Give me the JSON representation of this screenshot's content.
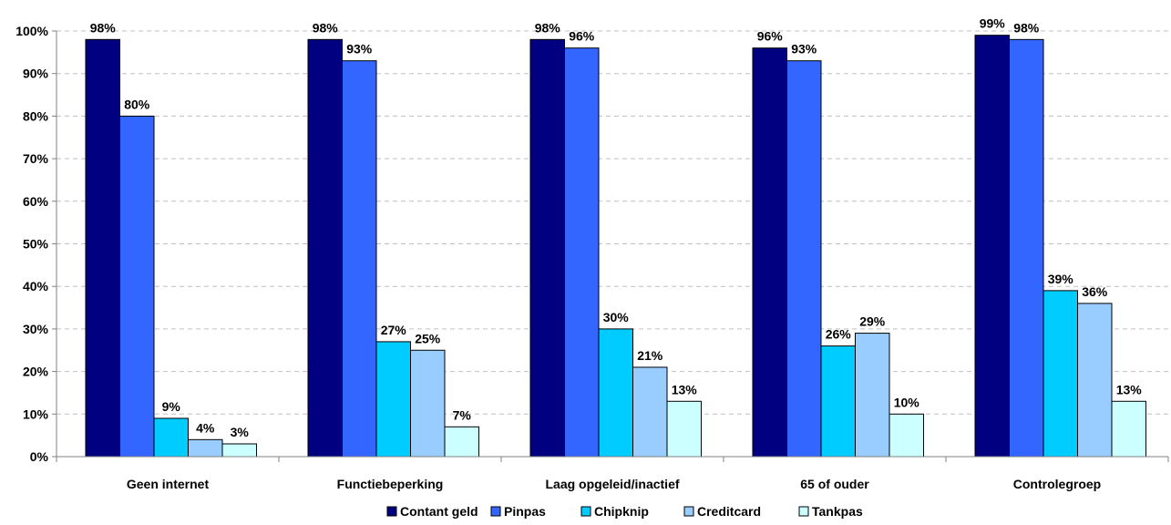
{
  "chart_data": {
    "type": "bar",
    "title": "",
    "xlabel": "",
    "ylabel": "",
    "ylim": [
      0,
      100
    ],
    "y_ticks": [
      "0%",
      "10%",
      "20%",
      "30%",
      "40%",
      "50%",
      "60%",
      "70%",
      "80%",
      "90%",
      "100%"
    ],
    "y_tick_values": [
      0,
      10,
      20,
      30,
      40,
      50,
      60,
      70,
      80,
      90,
      100
    ],
    "grid": true,
    "legend_position": "bottom",
    "categories": [
      "Geen internet",
      "Functiebeperking",
      "Laag opgeleid/inactief",
      "65 of ouder",
      "Controlegroep"
    ],
    "series": [
      {
        "name": "Contant geld",
        "color": "#000080",
        "values": [
          98,
          98,
          98,
          96,
          99
        ],
        "labels": [
          "98%",
          "98%",
          "98%",
          "96%",
          "99%"
        ]
      },
      {
        "name": "Pinpas",
        "color": "#3366FF",
        "values": [
          80,
          93,
          96,
          93,
          98
        ],
        "labels": [
          "80%",
          "93%",
          "96%",
          "93%",
          "98%"
        ]
      },
      {
        "name": "Chipknip",
        "color": "#00CCFF",
        "values": [
          9,
          27,
          30,
          26,
          39
        ],
        "labels": [
          "9%",
          "27%",
          "30%",
          "26%",
          "39%"
        ]
      },
      {
        "name": "Creditcard",
        "color": "#99CCFF",
        "values": [
          4,
          25,
          21,
          29,
          36
        ],
        "labels": [
          "4%",
          "25%",
          "21%",
          "29%",
          "36%"
        ]
      },
      {
        "name": "Tankpas",
        "color": "#CCFFFF",
        "values": [
          3,
          7,
          13,
          10,
          13
        ],
        "labels": [
          "3%",
          "7%",
          "13%",
          "10%",
          "13%"
        ]
      }
    ]
  }
}
